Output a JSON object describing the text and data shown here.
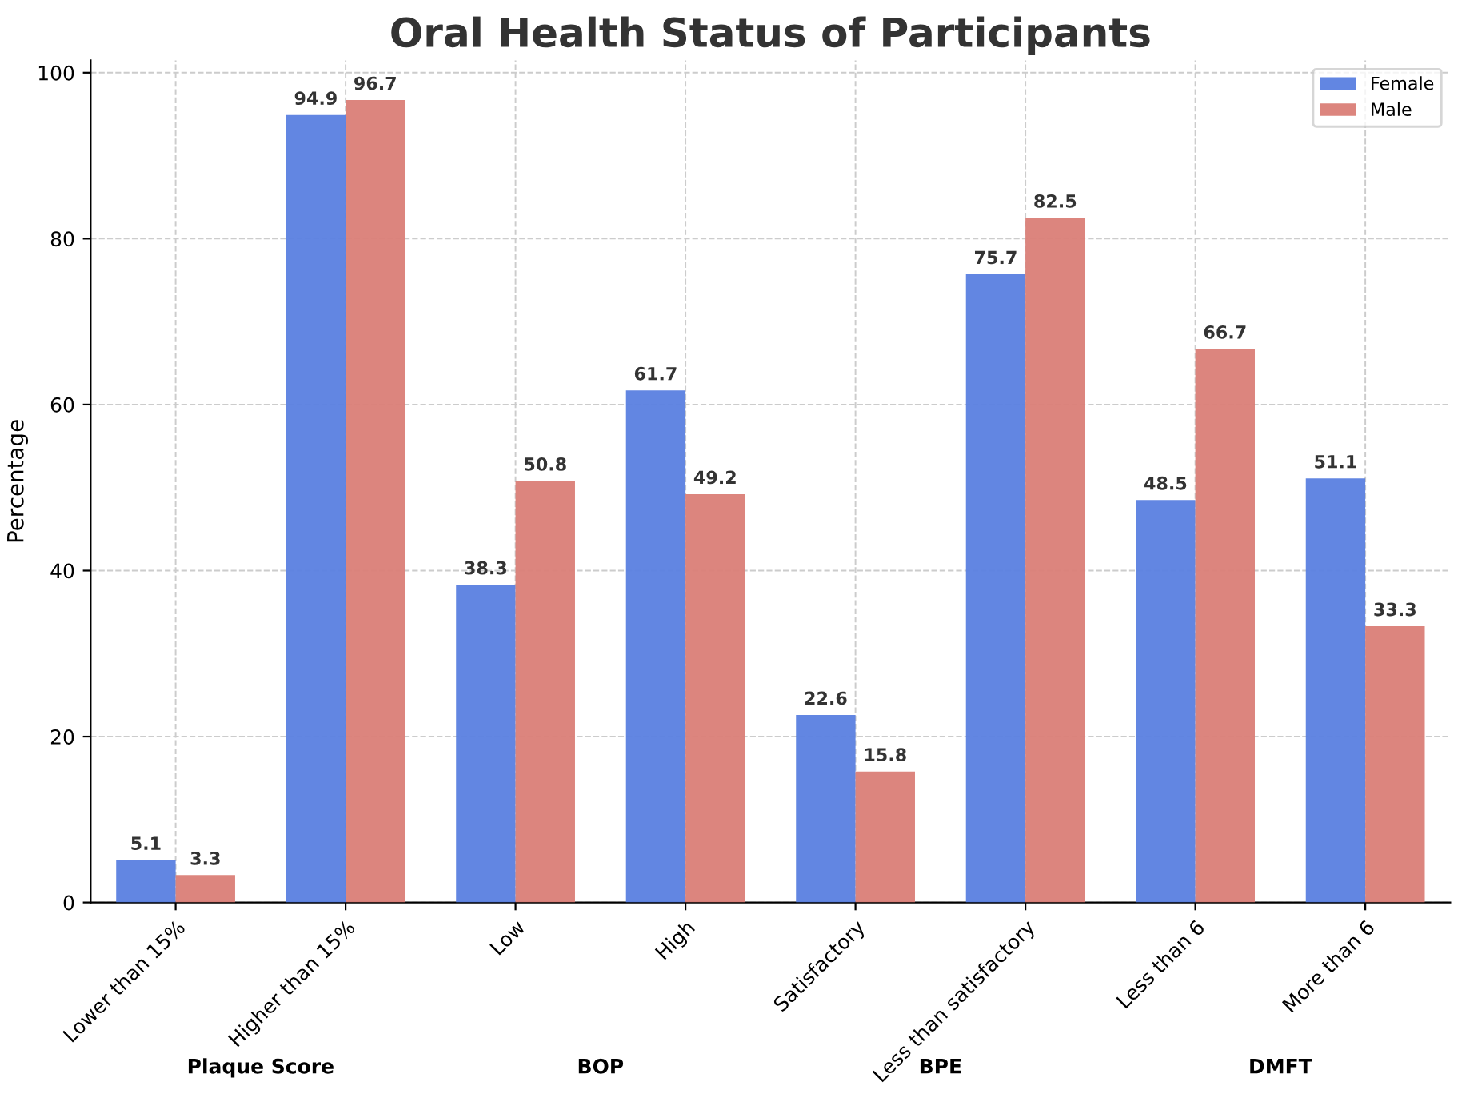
{
  "chart_data": {
    "type": "bar",
    "title": "Oral Health Status of Participants",
    "ylabel": "Percentage",
    "categories": [
      "Lower than 15%",
      "Higher than 15%",
      "Low",
      "High",
      "Satisfactory",
      "Less than satisfactory",
      "Less than 6",
      "More than 6"
    ],
    "series": [
      {
        "name": "Female",
        "color": "#5a80e0",
        "values": [
          5.1,
          94.9,
          38.3,
          61.7,
          22.6,
          75.7,
          48.5,
          51.1
        ]
      },
      {
        "name": "Male",
        "color": "#da7e77",
        "values": [
          3.3,
          96.7,
          50.8,
          49.2,
          15.8,
          82.5,
          66.7,
          33.3
        ]
      }
    ],
    "annotations": [
      "Plaque Score",
      "BOP",
      "BPE",
      "DMFT"
    ],
    "ylim": [
      0,
      101.5
    ],
    "yticks": [
      0,
      20,
      40,
      60,
      80,
      100
    ],
    "grid": true,
    "legend": "top right",
    "data_labels": true
  }
}
